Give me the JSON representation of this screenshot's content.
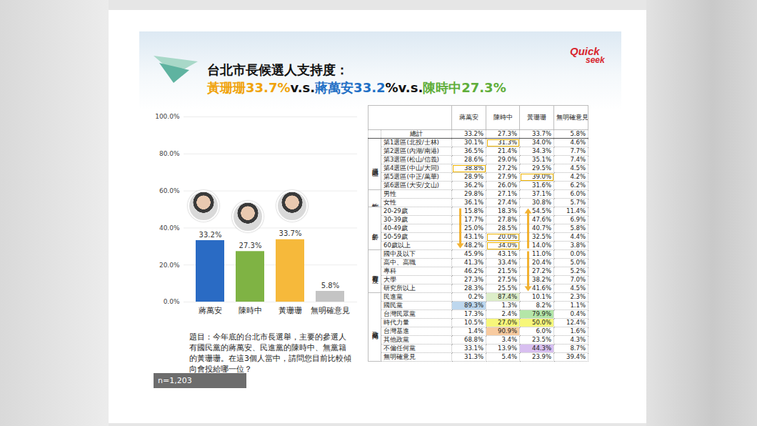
{
  "slide": {
    "title_line1": "台北市長候選人支持度：",
    "title_line2": [
      {
        "text": "黃珊珊33.7%",
        "color": "#f0a30a"
      },
      {
        "text": "v.s."
      },
      {
        "text": "蔣萬安33.2",
        "color": "#1f6fc5"
      },
      {
        "text": "%v.s."
      },
      {
        "text": "陳時中27.3%",
        "color": "#5fae3a"
      }
    ],
    "logo": [
      "Quick",
      "seek"
    ],
    "question": "題目：今年底的台北市長選舉，主要的參選人有國民黨的蔣萬安、民進黨的陳時中、無黨籍的黃珊珊。在這3個人當中，請問您目前比較傾向會投給哪一位？",
    "sample": "n=1,203"
  },
  "chart_data": {
    "type": "bar",
    "categories": [
      "蔣萬安",
      "陳時中",
      "黃珊珊",
      "無明確意見"
    ],
    "values": [
      33.2,
      27.3,
      33.7,
      5.8
    ],
    "value_labels": [
      "33.2%",
      "27.3%",
      "33.7%",
      "5.8%"
    ],
    "colors": [
      "#2a6bc4",
      "#7fb344",
      "#f6b93b",
      "#c4c4c4"
    ],
    "ylim": [
      0,
      100
    ],
    "yticks": [
      {
        "value": 0,
        "label": "0.0%"
      },
      {
        "value": 20,
        "label": "20.0%"
      },
      {
        "value": 40,
        "label": "40.0%"
      },
      {
        "value": 60,
        "label": "60.0%"
      },
      {
        "value": 80,
        "label": "80.0%"
      },
      {
        "value": 100,
        "label": "100.0%"
      }
    ],
    "grid": true,
    "data_labels": true
  },
  "table": {
    "columns": [
      "蔣萬安",
      "陳時中",
      "黃珊珊",
      "無明確意見"
    ],
    "total": {
      "label": "總計",
      "cells": [
        "33.2%",
        "27.3%",
        "33.7%",
        "5.8%"
      ]
    },
    "sections": [
      {
        "label": "議員選區",
        "rows": [
          {
            "label": "第1選區(北投/士林)",
            "cells": [
              "30.1%",
              {
                "text": "31.3%",
                "outline": true
              },
              "34.0%",
              "4.6%"
            ]
          },
          {
            "label": "第2選區(內湖/南港)",
            "cells": [
              "36.5%",
              "21.4%",
              "34.3%",
              "7.7%"
            ]
          },
          {
            "label": "第3選區(松山/信義)",
            "cells": [
              "28.6%",
              "29.0%",
              "35.1%",
              "7.4%"
            ]
          },
          {
            "label": "第4選區(中山/大同)",
            "cells": [
              {
                "text": "38.8%",
                "outline": true
              },
              "27.2%",
              "29.5%",
              "4.5%"
            ]
          },
          {
            "label": "第5選區(中正/萬華)",
            "cells": [
              "28.9%",
              "27.9%",
              {
                "text": "39.0%",
                "outline": true
              },
              "4.2%"
            ]
          },
          {
            "label": "第6選區(大安/文山)",
            "cells": [
              "36.2%",
              "26.0%",
              "31.6%",
              "6.2%"
            ]
          }
        ]
      },
      {
        "label": "性別",
        "rows": [
          {
            "label": "男性",
            "cells": [
              "29.8%",
              "27.1%",
              "37.1%",
              "6.0%"
            ]
          },
          {
            "label": "女性",
            "cells": [
              "36.1%",
              "27.4%",
              "30.8%",
              "5.7%"
            ]
          }
        ]
      },
      {
        "label": "年齡",
        "rows": [
          {
            "label": "20-29歲",
            "cells": [
              "15.8%",
              "18.3%",
              "54.5%",
              "11.4%"
            ]
          },
          {
            "label": "30-39歲",
            "cells": [
              "17.7%",
              "27.8%",
              "47.6%",
              "6.9%"
            ]
          },
          {
            "label": "40-49歲",
            "cells": [
              "25.0%",
              "28.5%",
              "40.7%",
              "5.8%"
            ]
          },
          {
            "label": "50-59歲",
            "cells": [
              "43.1%",
              {
                "text": "20.0%",
                "outline": true
              },
              "32.5%",
              "4.4%"
            ]
          },
          {
            "label": "60歲以上",
            "cells": [
              "48.2%",
              {
                "text": "34.0%",
                "outline": true
              },
              "14.0%",
              "3.8%"
            ]
          }
        ]
      },
      {
        "label": "教育程度",
        "rows": [
          {
            "label": "國中及以下",
            "cells": [
              "45.9%",
              "43.1%",
              "11.0%",
              "0.0%"
            ]
          },
          {
            "label": "高中、高職",
            "cells": [
              "41.3%",
              "33.4%",
              "20.4%",
              "5.0%"
            ]
          },
          {
            "label": "專科",
            "cells": [
              "46.2%",
              "21.5%",
              "27.2%",
              "5.2%"
            ]
          },
          {
            "label": "大學",
            "cells": [
              "27.3%",
              "27.5%",
              "38.2%",
              "7.0%"
            ]
          },
          {
            "label": "研究所以上",
            "cells": [
              "28.3%",
              "25.5%",
              "41.6%",
              "4.5%"
            ]
          }
        ]
      },
      {
        "label": "政黨傾向",
        "rows": [
          {
            "label": "民進黨",
            "cells": [
              "0.2%",
              {
                "text": "87.4%",
                "fill": "#dcedc8"
              },
              "10.1%",
              "2.3%"
            ]
          },
          {
            "label": "國民黨",
            "cells": [
              {
                "text": "89.3%",
                "fill": "#bdd7ee"
              },
              "1.3%",
              "8.2%",
              "1.1%"
            ]
          },
          {
            "label": "台灣民眾黨",
            "cells": [
              "17.3%",
              "2.4%",
              {
                "text": "79.9%",
                "fill": "#b4e6a8"
              },
              "0.4%"
            ]
          },
          {
            "label": "時代力量",
            "cells": [
              "10.5%",
              {
                "text": "27.0%",
                "fill": "#f7f77a"
              },
              {
                "text": "50.0%",
                "fill": "#f7f77a"
              },
              "12.4%"
            ]
          },
          {
            "label": "台灣基進",
            "cells": [
              "1.4%",
              {
                "text": "90.9%",
                "fill": "#f8cba0"
              },
              "6.0%",
              "1.6%"
            ]
          },
          {
            "label": "其他政黨",
            "cells": [
              "68.8%",
              "3.4%",
              "23.5%",
              "4.3%"
            ]
          },
          {
            "label": "不偏任何黨",
            "cells": [
              "33.1%",
              "13.9%",
              {
                "text": "44.3%",
                "fill": "#d8bff0"
              },
              "8.7%"
            ]
          },
          {
            "label": "無明確意見",
            "cells": [
              "31.3%",
              "5.4%",
              "23.9%",
              "39.4%"
            ]
          }
        ]
      }
    ]
  }
}
